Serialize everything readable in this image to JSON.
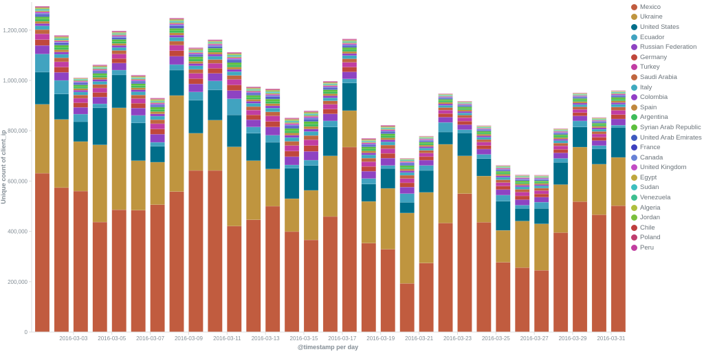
{
  "chart_data": {
    "type": "bar",
    "stacked": true,
    "xlabel": "@timestamp per day",
    "ylabel": "Unique count of client_ip",
    "ylim": [
      0,
      1306000
    ],
    "yticks": [
      0,
      200000,
      400000,
      600000,
      800000,
      1000000,
      1200000
    ],
    "ytick_labels": [
      "0",
      "200,000",
      "400,000",
      "600,000",
      "800,000",
      "1,000,000",
      "1,200,000"
    ],
    "categories": [
      "2016-03-01",
      "2016-03-02",
      "2016-03-03",
      "2016-03-04",
      "2016-03-05",
      "2016-03-06",
      "2016-03-07",
      "2016-03-08",
      "2016-03-09",
      "2016-03-10",
      "2016-03-11",
      "2016-03-12",
      "2016-03-13",
      "2016-03-14",
      "2016-03-15",
      "2016-03-16",
      "2016-03-17",
      "2016-03-18",
      "2016-03-19",
      "2016-03-20",
      "2016-03-21",
      "2016-03-22",
      "2016-03-23",
      "2016-03-24",
      "2016-03-25",
      "2016-03-26",
      "2016-03-27",
      "2016-03-28",
      "2016-03-29",
      "2016-03-30",
      "2016-03-31"
    ],
    "xtick_labels": [
      "2016-03-03",
      "2016-03-05",
      "2016-03-07",
      "2016-03-09",
      "2016-03-11",
      "2016-03-13",
      "2016-03-15",
      "2016-03-17",
      "2016-03-19",
      "2016-03-21",
      "2016-03-23",
      "2016-03-25",
      "2016-03-27",
      "2016-03-29",
      "2016-03-31"
    ],
    "grid": false,
    "legend_position": "right",
    "series": [
      {
        "name": "Mexico",
        "color": "#C15C3F",
        "values": [
          631000,
          574000,
          560000,
          437000,
          486000,
          484000,
          506000,
          558000,
          642000,
          642000,
          421000,
          446000,
          500000,
          399000,
          366000,
          459000,
          735000,
          353000,
          329000,
          193000,
          274000,
          433000,
          550000,
          436000,
          277000,
          256000,
          245000,
          395000,
          518000,
          466000,
          502000
        ]
      },
      {
        "name": "Ukraine",
        "color": "#BF953F",
        "values": [
          274000,
          271000,
          197000,
          307000,
          405000,
          197000,
          169000,
          382000,
          148000,
          200000,
          315000,
          235000,
          148000,
          131000,
          197000,
          241000,
          145000,
          166000,
          242000,
          280000,
          281000,
          313000,
          150000,
          184000,
          127000,
          185000,
          185000,
          191000,
          217000,
          201000,
          192000
        ]
      },
      {
        "name": "United States",
        "color": "#006E8A",
        "values": [
          128000,
          101000,
          79000,
          147000,
          131000,
          150000,
          63000,
          101000,
          131000,
          120000,
          127000,
          109000,
          106000,
          121000,
          99000,
          115000,
          110000,
          69000,
          79000,
          42000,
          87000,
          49000,
          91000,
          69000,
          116000,
          50000,
          61000,
          88000,
          80000,
          61000,
          119000
        ]
      },
      {
        "name": "Ecuador",
        "color": "#41A3C0",
        "values": [
          72000,
          54000,
          30000,
          16000,
          19000,
          30000,
          16000,
          22000,
          33000,
          36000,
          64000,
          25000,
          28000,
          13000,
          21000,
          24000,
          16000,
          22000,
          12000,
          35000,
          20000,
          38000,
          13000,
          17000,
          24000,
          13000,
          25000,
          16000,
          24000,
          13000,
          9000
        ]
      },
      {
        "name": "Russian Federation",
        "color": "#8E43C2",
        "values": [
          34000,
          32000,
          27000,
          27000,
          28000,
          29000,
          32000,
          33000,
          32000,
          30000,
          33000,
          29000,
          33000,
          33000,
          35000,
          28000,
          28000,
          29000,
          29000,
          26000,
          21000,
          21000,
          20000,
          21000,
          22000,
          22000,
          20000,
          22000,
          20000,
          20000,
          25000
        ]
      },
      {
        "name": "Germany",
        "color": "#C0473B",
        "values": [
          23000,
          21000,
          18000,
          18000,
          18000,
          19000,
          21000,
          22000,
          21000,
          20000,
          22000,
          19000,
          22000,
          22000,
          23000,
          19000,
          19000,
          19000,
          19000,
          17000,
          14000,
          14000,
          14000,
          14000,
          14000,
          15000,
          13000,
          14000,
          13000,
          13000,
          17000
        ]
      },
      {
        "name": "Turkey",
        "color": "#C13DA3",
        "values": [
          23000,
          21000,
          18000,
          18000,
          18000,
          19000,
          21000,
          22000,
          21000,
          20000,
          22000,
          19000,
          22000,
          22000,
          23000,
          19000,
          19000,
          19000,
          19000,
          17000,
          14000,
          14000,
          14000,
          14000,
          14000,
          15000,
          13000,
          14000,
          13000,
          13000,
          17000
        ]
      },
      {
        "name": "Saudi Arabia",
        "color": "#C0663F",
        "values": [
          17000,
          16000,
          13000,
          14000,
          14000,
          14000,
          16000,
          16000,
          16000,
          15000,
          16000,
          14000,
          16000,
          17000,
          17000,
          14000,
          14000,
          14000,
          14000,
          13000,
          11000,
          10000,
          10000,
          10000,
          11000,
          11000,
          10000,
          11000,
          10000,
          10000,
          13000
        ]
      },
      {
        "name": "Italy",
        "color": "#3FAABF",
        "values": [
          15000,
          14000,
          12000,
          12000,
          12000,
          13000,
          14000,
          15000,
          14000,
          13000,
          15000,
          13000,
          15000,
          15000,
          16000,
          12000,
          13000,
          13000,
          13000,
          11000,
          9000,
          9000,
          9000,
          9000,
          10000,
          10000,
          9000,
          10000,
          9000,
          9000,
          11000
        ]
      },
      {
        "name": "Colombia",
        "color": "#923EC6",
        "values": [
          9000,
          9000,
          7000,
          8000,
          8000,
          8000,
          9000,
          9000,
          9000,
          8000,
          9000,
          8000,
          9000,
          9000,
          10000,
          8000,
          8000,
          8000,
          8000,
          7000,
          6000,
          6000,
          6000,
          6000,
          6000,
          6000,
          5000,
          6000,
          6000,
          6000,
          7000
        ]
      },
      {
        "name": "Spain",
        "color": "#C0883E",
        "values": [
          9000,
          9000,
          7000,
          8000,
          8000,
          8000,
          9000,
          9000,
          9000,
          8000,
          9000,
          8000,
          9000,
          9000,
          10000,
          8000,
          8000,
          8000,
          8000,
          7000,
          6000,
          6000,
          6000,
          6000,
          6000,
          6000,
          5000,
          6000,
          6000,
          6000,
          7000
        ]
      },
      {
        "name": "Argentina",
        "color": "#3EBC5A",
        "values": [
          9000,
          9000,
          7000,
          8000,
          8000,
          8000,
          9000,
          9000,
          9000,
          8000,
          9000,
          8000,
          9000,
          9000,
          10000,
          8000,
          8000,
          8000,
          8000,
          7000,
          6000,
          6000,
          6000,
          6000,
          6000,
          6000,
          5000,
          6000,
          6000,
          6000,
          7000
        ]
      },
      {
        "name": "Syrian Arab Republic",
        "color": "#5DBF3E",
        "values": [
          9000,
          9000,
          7000,
          8000,
          8000,
          8000,
          9000,
          9000,
          9000,
          8000,
          9000,
          8000,
          9000,
          9000,
          10000,
          8000,
          8000,
          8000,
          8000,
          7000,
          6000,
          6000,
          6000,
          6000,
          6000,
          6000,
          5000,
          6000,
          6000,
          6000,
          7000
        ]
      },
      {
        "name": "United Arab Emirates",
        "color": "#3E5ABF",
        "values": [
          5000,
          4000,
          4000,
          4000,
          4000,
          4000,
          4000,
          5000,
          4000,
          4000,
          5000,
          4000,
          5000,
          5000,
          5000,
          4000,
          4000,
          4000,
          4000,
          4000,
          3000,
          3000,
          3000,
          3000,
          3000,
          3000,
          3000,
          3000,
          3000,
          3000,
          3000
        ]
      },
      {
        "name": "France",
        "color": "#3E40BF",
        "values": [
          4000,
          4000,
          3000,
          3000,
          3000,
          3000,
          3000,
          4000,
          3000,
          3000,
          4000,
          3000,
          4000,
          4000,
          4000,
          3000,
          3000,
          3000,
          3000,
          3000,
          2000,
          2000,
          2000,
          2000,
          2000,
          2000,
          2000,
          2000,
          2000,
          2000,
          3000
        ]
      },
      {
        "name": "Canada",
        "color": "#6882D6",
        "values": [
          5000,
          4000,
          4000,
          4000,
          4000,
          4000,
          4000,
          5000,
          4000,
          4000,
          5000,
          4000,
          5000,
          5000,
          5000,
          4000,
          4000,
          4000,
          4000,
          4000,
          3000,
          3000,
          3000,
          3000,
          3000,
          3000,
          3000,
          3000,
          3000,
          3000,
          3000
        ]
      },
      {
        "name": "United Kingdom",
        "color": "#C24CC4",
        "values": [
          6000,
          5000,
          4000,
          5000,
          5000,
          5000,
          5000,
          5000,
          5000,
          5000,
          5000,
          5000,
          5000,
          6000,
          6000,
          5000,
          5000,
          5000,
          5000,
          4000,
          4000,
          3000,
          3000,
          3000,
          4000,
          4000,
          3000,
          4000,
          3000,
          3000,
          4000
        ]
      },
      {
        "name": "Egypt",
        "color": "#BFA73E",
        "values": [
          4000,
          4000,
          3000,
          3000,
          3000,
          3000,
          3000,
          4000,
          3000,
          3000,
          4000,
          3000,
          4000,
          4000,
          4000,
          3000,
          3000,
          3000,
          3000,
          3000,
          2000,
          2000,
          2000,
          2000,
          2000,
          2000,
          2000,
          2000,
          2000,
          2000,
          3000
        ]
      },
      {
        "name": "Sudan",
        "color": "#3EBFBF",
        "values": [
          4000,
          4000,
          3000,
          3000,
          3000,
          3000,
          3000,
          4000,
          3000,
          3000,
          4000,
          3000,
          4000,
          4000,
          4000,
          3000,
          3000,
          3000,
          3000,
          3000,
          2000,
          2000,
          2000,
          2000,
          2000,
          2000,
          2000,
          2000,
          2000,
          2000,
          3000
        ]
      },
      {
        "name": "Venezuela",
        "color": "#3EBF90",
        "values": [
          3000,
          3000,
          2000,
          2000,
          2000,
          2000,
          3000,
          3000,
          3000,
          2000,
          3000,
          2000,
          3000,
          3000,
          3000,
          2000,
          2000,
          2000,
          2000,
          2000,
          2000,
          2000,
          2000,
          2000,
          2000,
          2000,
          2000,
          2000,
          2000,
          2000,
          2000
        ]
      },
      {
        "name": "Algeria",
        "color": "#AFBF3E",
        "values": [
          3000,
          3000,
          2000,
          2000,
          2000,
          2000,
          3000,
          3000,
          3000,
          2000,
          3000,
          2000,
          3000,
          3000,
          3000,
          2000,
          2000,
          2000,
          2000,
          2000,
          2000,
          2000,
          2000,
          2000,
          2000,
          2000,
          2000,
          2000,
          2000,
          2000,
          2000
        ]
      },
      {
        "name": "Jordan",
        "color": "#7ABF3E",
        "values": [
          2000,
          2000,
          1000,
          2000,
          2000,
          2000,
          2000,
          2000,
          2000,
          2000,
          2000,
          2000,
          2000,
          2000,
          2000,
          2000,
          2000,
          2000,
          2000,
          1000,
          1000,
          1000,
          1000,
          1000,
          1000,
          1000,
          1000,
          1000,
          1000,
          1000,
          1000
        ]
      },
      {
        "name": "Chile",
        "color": "#BF3E3E",
        "values": [
          2000,
          2000,
          1000,
          2000,
          2000,
          2000,
          2000,
          2000,
          2000,
          2000,
          2000,
          2000,
          2000,
          2000,
          2000,
          2000,
          2000,
          2000,
          2000,
          1000,
          1000,
          1000,
          1000,
          1000,
          1000,
          1000,
          1000,
          1000,
          1000,
          1000,
          1000
        ]
      },
      {
        "name": "Poland",
        "color": "#BF3E6E",
        "values": [
          2000,
          2000,
          1000,
          2000,
          2000,
          2000,
          2000,
          2000,
          2000,
          2000,
          2000,
          2000,
          2000,
          2000,
          2000,
          2000,
          2000,
          2000,
          2000,
          1000,
          1000,
          1000,
          1000,
          1000,
          1000,
          1000,
          1000,
          1000,
          1000,
          1000,
          1000
        ]
      },
      {
        "name": "Peru",
        "color": "#C23EA0",
        "values": [
          2000,
          2000,
          1000,
          2000,
          2000,
          2000,
          2000,
          2000,
          2000,
          2000,
          2000,
          2000,
          2000,
          2000,
          2000,
          2000,
          2000,
          2000,
          2000,
          1000,
          1000,
          1000,
          1000,
          1000,
          1000,
          1000,
          1000,
          1000,
          1000,
          1000,
          1000
        ]
      }
    ]
  }
}
